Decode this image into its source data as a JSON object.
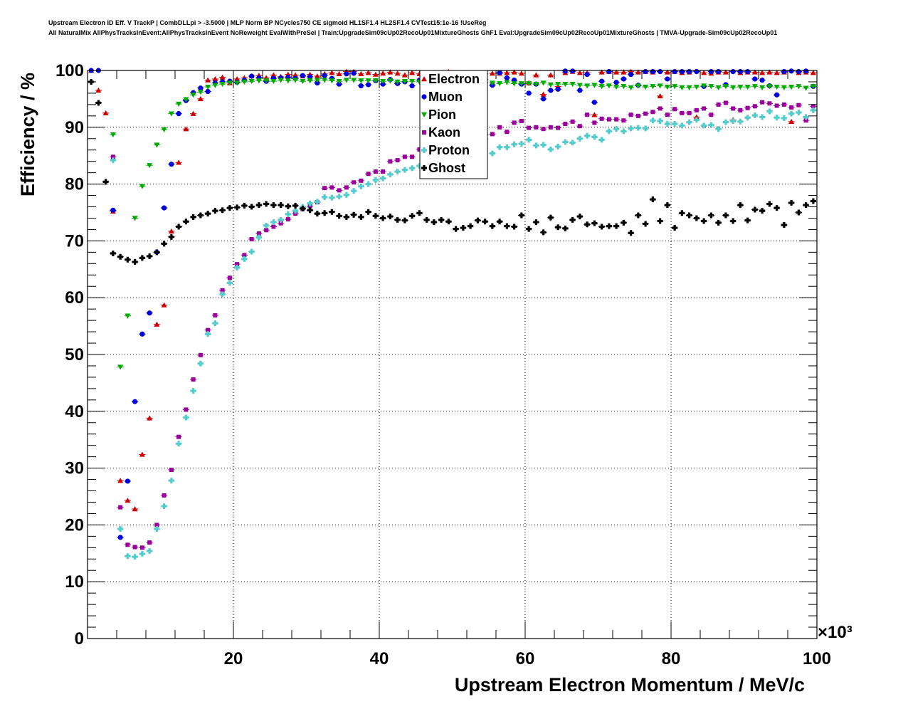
{
  "header": {
    "line1": "Upstream Electron ID Eff. V TrackP | CombDLLpi > -3.5000 | MLP Norm BP NCycles750 CE sigmoid HL1SF1.4 HL2SF1.4 CVTest15:1e-16 !UseReg",
    "line2": "All NaturalMix AllPhysTracksInEvent:AllPhysTracksInEvent NoReweight EvalWithPreSel | Train:UpgradeSim09cUp02RecoUp01MixtureGhosts GhF1 Eval:UpgradeSim09cUp02RecoUp01MixtureGhosts | TMVA-Upgrade-Sim09cUp02RecoUp01"
  },
  "chart_data": {
    "type": "scatter",
    "xlabel": "Upstream Electron Momentum / MeV/c",
    "ylabel": "Efficiency / %",
    "x_multiplier_label": "×10³",
    "xlim": [
      0,
      100
    ],
    "ylim": [
      0,
      100
    ],
    "x_ticks": [
      20,
      40,
      60,
      80,
      100
    ],
    "x_tick_labels": [
      "20",
      "40",
      "60",
      "80",
      "100"
    ],
    "y_ticks": [
      0,
      10,
      20,
      30,
      40,
      50,
      60,
      70,
      80,
      90,
      100
    ],
    "y_tick_labels": [
      "0",
      "10",
      "20",
      "30",
      "40",
      "50",
      "60",
      "70",
      "80",
      "90",
      "100"
    ],
    "grid": true,
    "legend_position": "top-center",
    "x": [
      0.5,
      1.5,
      2.5,
      3.5,
      4.5,
      5.5,
      6.5,
      7.5,
      8.5,
      9.5,
      10.5,
      11.5,
      12.5,
      13.5,
      14.5,
      15.5,
      16.5,
      17.5,
      18.5,
      19.5,
      20.5,
      21.5,
      22.5,
      23.5,
      24.5,
      25.5,
      26.5,
      27.5,
      28.5,
      29.5,
      30.5,
      31.5,
      32.5,
      33.5,
      34.5,
      35.5,
      36.5,
      37.5,
      38.5,
      39.5,
      40.5,
      41.5,
      42.5,
      43.5,
      44.5,
      45.5,
      46.5,
      47.5,
      48.5,
      49.5,
      50.5,
      51.5,
      52.5,
      53.5,
      54.5,
      55.5,
      56.5,
      57.5,
      58.5,
      59.5,
      60.5,
      61.5,
      62.5,
      63.5,
      64.5,
      65.5,
      66.5,
      67.5,
      68.5,
      69.5,
      70.5,
      71.5,
      72.5,
      73.5,
      74.5,
      75.5,
      76.5,
      77.5,
      78.5,
      79.5,
      80.5,
      81.5,
      82.5,
      83.5,
      84.5,
      85.5,
      86.5,
      87.5,
      88.5,
      89.5,
      90.5,
      91.5,
      92.5,
      93.5,
      94.5,
      95.5,
      96.5,
      97.5,
      98.5,
      99.5
    ],
    "series": [
      {
        "name": "Electron",
        "color": "#cc0000",
        "marker": "triangle-up",
        "values": [
          100,
          96.5,
          92.5,
          75.2,
          27.8,
          24.3,
          22.8,
          32.4,
          38.8,
          55.3,
          58.7,
          71.7,
          83.8,
          89.7,
          92.4,
          95.0,
          98.3,
          98.5,
          98.8,
          97.8,
          98.5,
          98.7,
          99.0,
          99.1,
          98.7,
          99.2,
          98.9,
          99.3,
          99.2,
          99.0,
          99.3,
          99.0,
          99.4,
          99.6,
          99.4,
          99.8,
          99.8,
          99.4,
          99.6,
          99.3,
          99.5,
          99.7,
          99.5,
          99.2,
          99.6,
          99.4,
          99.3,
          99.6,
          99.6,
          99.8,
          99.2,
          99.6,
          99.4,
          99.3,
          99.4,
          99.5,
          99.5,
          99.6,
          99.7,
          99.5,
          97.8,
          99.2,
          95.8,
          99.2,
          97.2,
          99.6,
          99.8,
          99.6,
          99.6,
          92.2,
          99.7,
          99.8,
          99.7,
          99.7,
          99.8,
          99.7,
          99.8,
          99.7,
          95.5,
          99.7,
          99.8,
          99.6,
          99.7,
          91.8,
          99.6,
          99.5,
          99.7,
          99.7,
          91.3,
          99.6,
          99.7,
          99.7,
          99.6,
          99.7,
          99.6,
          99.7,
          91.0,
          99.6,
          99.7,
          99.6
        ]
      },
      {
        "name": "Muon",
        "color": "#0000dd",
        "marker": "circle",
        "values": [
          100,
          100,
          null,
          75.4,
          17.8,
          27.7,
          41.7,
          53.6,
          57.3,
          68.0,
          75.8,
          83.5,
          92.4,
          94.7,
          96.1,
          96.9,
          96.3,
          97.8,
          98.0,
          98.1,
          97.9,
          98.3,
          99.0,
          98.7,
          98.1,
          98.6,
          98.7,
          98.8,
          98.6,
          99.1,
          98.9,
          97.8,
          99.1,
          98.6,
          97.6,
          99.4,
          99.5,
          97.3,
          97.5,
          98.2,
          97.6,
          98.4,
          97.7,
          98.0,
          97.3,
          98.3,
          97.2,
          98.3,
          97.7,
          98.1,
          98.3,
          98.4,
          99.6,
          98.3,
          98.4,
          97.4,
          99.6,
          98.7,
          98.3,
          97.6,
          96.0,
          97.6,
          95.0,
          96.5,
          96.7,
          99.9,
          99.9,
          96.5,
          99.3,
          94.4,
          98.1,
          99.8,
          97.9,
          98.5,
          99.3,
          97.4,
          99.8,
          99.8,
          99.8,
          98.5,
          99.8,
          99.8,
          99.8,
          99.8,
          97.2,
          99.8,
          99.8,
          97.5,
          99.8,
          99.8,
          99.8,
          98.5,
          98.3,
          97.3,
          95.7,
          99.8,
          99.9,
          99.8,
          99.9,
          97.2
        ]
      },
      {
        "name": "Pion",
        "color": "#00aa00",
        "marker": "triangle-down",
        "values": [
          null,
          null,
          null,
          88.7,
          47.8,
          56.8,
          74.0,
          79.6,
          83.3,
          86.9,
          89.6,
          92.4,
          94.1,
          94.9,
          95.7,
          96.2,
          97.1,
          97.4,
          97.6,
          97.8,
          97.8,
          98.0,
          98.1,
          98.2,
          98.2,
          98.1,
          98.3,
          98.2,
          98.3,
          98.1,
          98.2,
          98.3,
          98.3,
          98.2,
          98.1,
          98.3,
          98.3,
          98.2,
          98.2,
          98.2,
          98.1,
          98.2,
          98.0,
          98.1,
          98.1,
          98.0,
          98.0,
          98.0,
          97.9,
          97.9,
          97.9,
          98.0,
          97.8,
          97.8,
          97.9,
          97.8,
          97.7,
          97.9,
          97.7,
          97.7,
          97.7,
          97.6,
          97.8,
          97.5,
          97.6,
          97.6,
          97.6,
          97.4,
          97.3,
          97.4,
          97.2,
          97.3,
          97.1,
          97.2,
          97.0,
          97.3,
          97.1,
          97.2,
          97.3,
          97.1,
          97.2,
          97.0,
          97.0,
          97.1,
          97.3,
          97.2,
          97.0,
          97.2,
          97.0,
          97.1,
          97.1,
          97.2,
          97.0,
          97.2,
          97.1,
          97.0,
          97.1,
          97.2,
          96.9,
          97.2
        ]
      },
      {
        "name": "Kaon",
        "color": "#990099",
        "marker": "square",
        "values": [
          null,
          null,
          null,
          84.8,
          23.1,
          16.5,
          16.1,
          16.0,
          16.9,
          20.0,
          25.2,
          29.7,
          35.5,
          40.3,
          45.6,
          49.9,
          54.3,
          56.9,
          61.3,
          63.5,
          65.9,
          67.5,
          70.3,
          71.3,
          71.9,
          72.5,
          73.1,
          73.8,
          74.8,
          75.6,
          76.1,
          76.8,
          79.3,
          79.4,
          78.9,
          79.4,
          80.3,
          80.6,
          81.8,
          82.2,
          82.2,
          84.0,
          84.2,
          84.8,
          84.8,
          86.1,
          86.0,
          85.9,
          86.5,
          87.2,
          87.8,
          87.7,
          87.9,
          87.7,
          88.8,
          88.8,
          90.0,
          89.2,
          90.8,
          91.1,
          89.9,
          90.0,
          89.7,
          90.0,
          89.9,
          90.6,
          91.0,
          90.2,
          92.2,
          90.8,
          91.5,
          91.4,
          91.4,
          91.2,
          92.2,
          92.0,
          92.4,
          92.7,
          93.3,
          92.2,
          93.2,
          92.5,
          92.5,
          93.0,
          93.3,
          92.2,
          94.0,
          94.3,
          93.3,
          93.0,
          93.4,
          93.7,
          94.4,
          94.2,
          93.8,
          94.0,
          93.5,
          93.9,
          91.2,
          93.7
        ]
      },
      {
        "name": "Proton",
        "color": "#55cccc",
        "marker": "cross",
        "values": [
          null,
          null,
          null,
          84.2,
          19.3,
          14.5,
          14.4,
          14.9,
          15.4,
          19.3,
          23.3,
          27.8,
          34.3,
          38.9,
          43.6,
          48.4,
          53.6,
          55.5,
          60.6,
          62.6,
          65.3,
          66.8,
          68.1,
          70.6,
          72.7,
          73.3,
          73.7,
          74.7,
          75.3,
          76.0,
          76.6,
          76.9,
          77.7,
          77.6,
          77.8,
          78.1,
          78.8,
          79.6,
          80.0,
          80.7,
          81.0,
          81.7,
          82.2,
          82.5,
          82.8,
          83.2,
          83.8,
          84.7,
          85.0,
          85.4,
          85.0,
          85.6,
          86.4,
          87.4,
          87.9,
          85.4,
          86.5,
          86.5,
          87.0,
          87.1,
          87.8,
          86.8,
          86.9,
          86.1,
          86.6,
          87.4,
          87.3,
          88.0,
          88.5,
          88.3,
          87.8,
          89.3,
          89.7,
          89.3,
          89.8,
          89.9,
          89.8,
          91.2,
          91.1,
          90.6,
          90.6,
          90.3,
          90.9,
          91.3,
          90.3,
          90.4,
          89.7,
          90.9,
          91.1,
          91.0,
          91.7,
          92.1,
          91.8,
          92.8,
          91.7,
          91.6,
          92.4,
          92.6,
          91.8,
          93.0
        ]
      },
      {
        "name": "Ghost",
        "color": "#000000",
        "marker": "cross",
        "values": [
          98.0,
          94.3,
          80.4,
          67.8,
          67.2,
          66.7,
          66.3,
          67.0,
          67.3,
          68.0,
          69.5,
          70.7,
          72.5,
          73.4,
          74.2,
          74.5,
          74.8,
          75.3,
          75.4,
          75.8,
          75.9,
          76.2,
          76.0,
          76.3,
          76.5,
          76.3,
          76.3,
          76.1,
          76.2,
          75.7,
          75.4,
          74.8,
          74.9,
          75.1,
          74.4,
          74.2,
          74.6,
          74.2,
          75.1,
          74.4,
          74.0,
          74.3,
          73.7,
          73.6,
          74.4,
          74.9,
          73.7,
          73.3,
          73.7,
          73.4,
          72.1,
          72.3,
          72.6,
          73.6,
          73.4,
          72.6,
          73.4,
          72.6,
          72.5,
          74.5,
          72.1,
          73.3,
          71.5,
          74.1,
          72.4,
          72.2,
          73.7,
          74.3,
          72.9,
          73.1,
          72.5,
          72.6,
          72.6,
          73.2,
          71.4,
          74.5,
          73.0,
          77.3,
          73.5,
          76.3,
          72.3,
          74.9,
          74.5,
          74.0,
          73.5,
          74.5,
          73.2,
          74.5,
          73.5,
          76.3,
          73.6,
          75.5,
          75.3,
          76.5,
          75.8,
          72.8,
          76.7,
          75.0,
          76.3,
          77.0
        ]
      }
    ]
  }
}
